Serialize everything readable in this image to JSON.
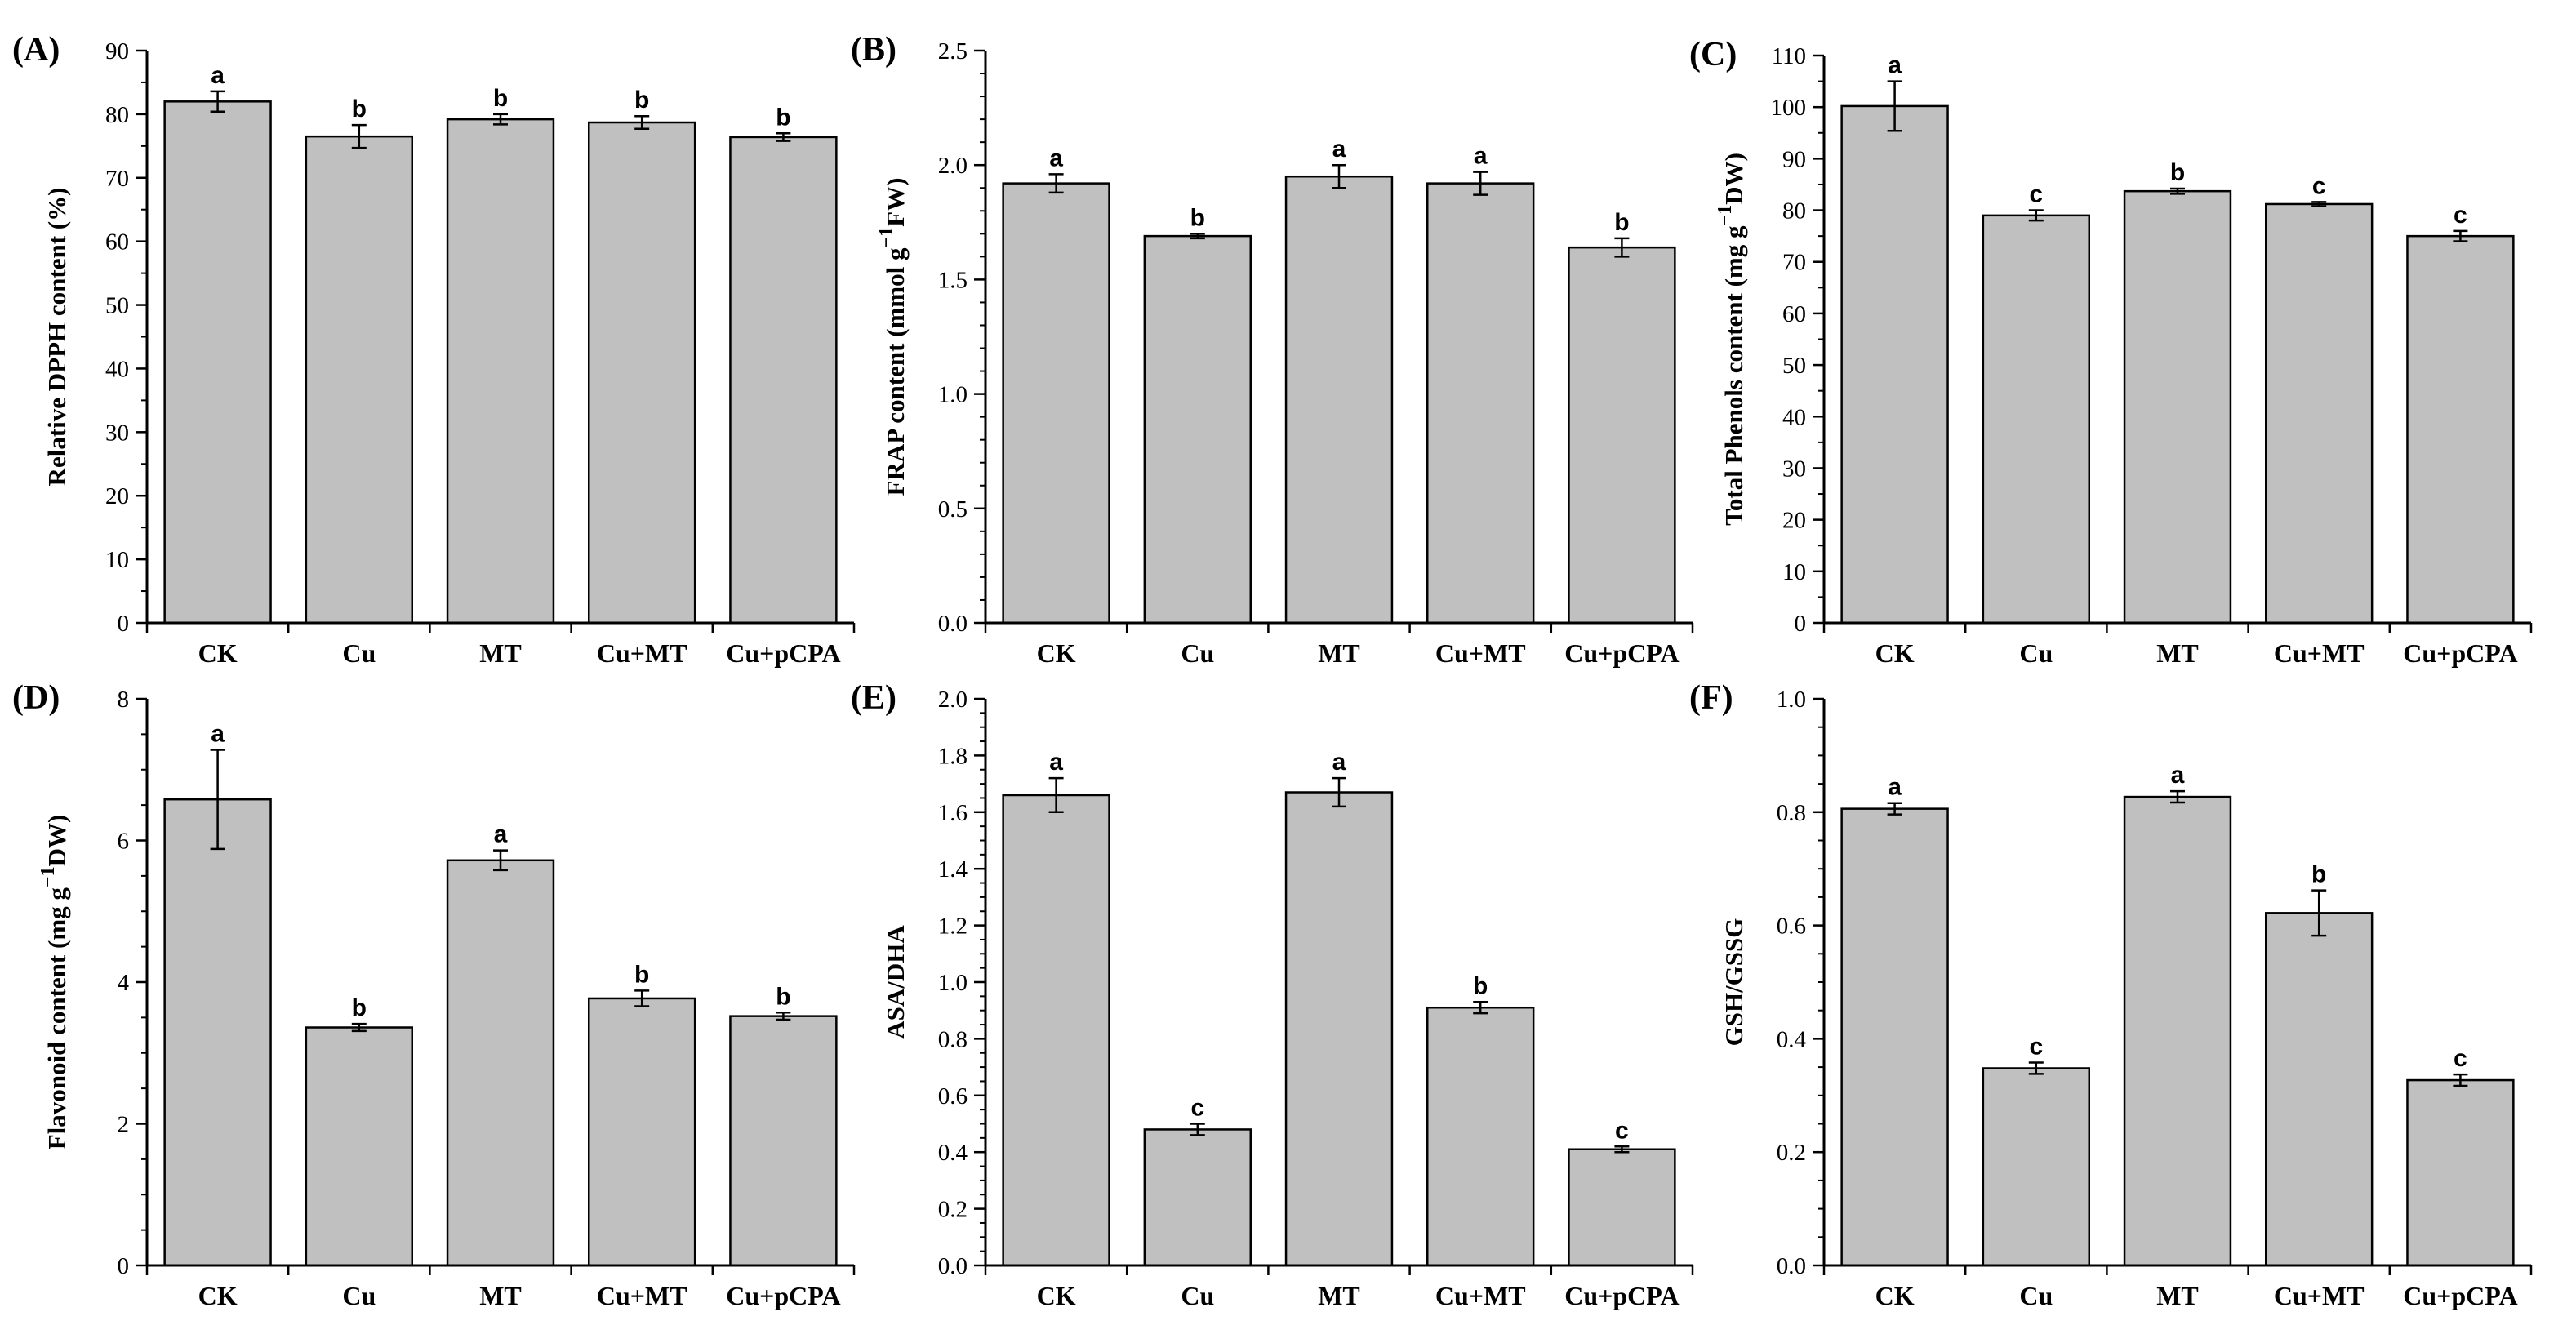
{
  "chart_data": [
    {
      "panel": "(A)",
      "type": "bar",
      "categories": [
        "CK",
        "Cu",
        "MT",
        "Cu+MT",
        "Cu+pCPA"
      ],
      "values": [
        82.0,
        76.5,
        79.2,
        78.7,
        76.4
      ],
      "errors": [
        1.6,
        1.8,
        0.8,
        1.0,
        0.6
      ],
      "significance": [
        "a",
        "b",
        "b",
        "b",
        "b"
      ],
      "ylabel": {
        "pre": "Relative DPPH content (%)",
        "sup": "",
        "post": ""
      },
      "ylim": [
        0,
        90
      ],
      "yticks": [
        0,
        10,
        20,
        30,
        40,
        50,
        60,
        70,
        80,
        90
      ],
      "ytick_labels": [
        "0",
        "10",
        "20",
        "30",
        "40",
        "50",
        "60",
        "70",
        "80",
        "90"
      ],
      "yminor_step": 5
    },
    {
      "panel": "(B)",
      "type": "bar",
      "categories": [
        "CK",
        "Cu",
        "MT",
        "Cu+MT",
        "Cu+pCPA"
      ],
      "values": [
        1.92,
        1.69,
        1.95,
        1.92,
        1.64
      ],
      "errors": [
        0.04,
        0.01,
        0.05,
        0.05,
        0.04
      ],
      "significance": [
        "a",
        "b",
        "a",
        "a",
        "b"
      ],
      "ylabel": {
        "pre": "FRAP content (mmol g",
        "sup": "−1",
        "post": "FW)"
      },
      "ylim": [
        0.0,
        2.5
      ],
      "yticks": [
        0.0,
        0.5,
        1.0,
        1.5,
        2.0,
        2.5
      ],
      "ytick_labels": [
        "0.0",
        "0.5",
        "1.0",
        "1.5",
        "2.0",
        "2.5"
      ],
      "yminor_step": 0.1
    },
    {
      "panel": "(C)",
      "type": "bar",
      "categories": [
        "CK",
        "Cu",
        "MT",
        "Cu+MT",
        "Cu+pCPA"
      ],
      "values": [
        100.2,
        79.0,
        83.7,
        81.2,
        75.0
      ],
      "errors": [
        4.8,
        1.0,
        0.5,
        0.4,
        1.0
      ],
      "significance": [
        "a",
        "c",
        "b",
        "c",
        "c"
      ],
      "ylabel": {
        "pre": "Total Phenols content (mg g",
        "sup": "−1",
        "post": "DW)"
      },
      "ylim": [
        0,
        110
      ],
      "yticks": [
        0,
        10,
        20,
        30,
        40,
        50,
        60,
        70,
        80,
        90,
        100,
        110
      ],
      "ytick_labels": [
        "0",
        "10",
        "20",
        "30",
        "40",
        "50",
        "60",
        "70",
        "80",
        "90",
        "100",
        "110"
      ],
      "yminor_step": 5
    },
    {
      "panel": "(D)",
      "type": "bar",
      "categories": [
        "CK",
        "Cu",
        "MT",
        "Cu+MT",
        "Cu+pCPA"
      ],
      "values": [
        6.58,
        3.36,
        5.72,
        3.77,
        3.52
      ],
      "errors": [
        0.7,
        0.05,
        0.14,
        0.11,
        0.05
      ],
      "significance": [
        "a",
        "b",
        "a",
        "b",
        "b"
      ],
      "ylabel": {
        "pre": "Flavonoid content (mg g",
        "sup": "−1",
        "post": "DW)"
      },
      "ylim": [
        0,
        8
      ],
      "yticks": [
        0,
        2,
        4,
        6,
        8
      ],
      "ytick_labels": [
        "0",
        "2",
        "4",
        "6",
        "8"
      ],
      "yminor_step": 0.5
    },
    {
      "panel": "(E)",
      "type": "bar",
      "categories": [
        "CK",
        "Cu",
        "MT",
        "Cu+MT",
        "Cu+pCPA"
      ],
      "values": [
        1.66,
        0.48,
        1.67,
        0.91,
        0.41
      ],
      "errors": [
        0.06,
        0.02,
        0.05,
        0.02,
        0.01
      ],
      "significance": [
        "a",
        "c",
        "a",
        "b",
        "c"
      ],
      "ylabel": {
        "pre": "ASA/DHA",
        "sup": "",
        "post": ""
      },
      "ylim": [
        0.0,
        2.0
      ],
      "yticks": [
        0.0,
        0.2,
        0.4,
        0.6,
        0.8,
        1.0,
        1.2,
        1.4,
        1.6,
        1.8,
        2.0
      ],
      "ytick_labels": [
        "0.0",
        "0.2",
        "0.4",
        "0.6",
        "0.8",
        "1.0",
        "1.2",
        "1.4",
        "1.6",
        "1.8",
        "2.0"
      ],
      "yminor_step": 0.05
    },
    {
      "panel": "(F)",
      "type": "bar",
      "categories": [
        "CK",
        "Cu",
        "MT",
        "Cu+MT",
        "Cu+pCPA"
      ],
      "values": [
        0.806,
        0.348,
        0.827,
        0.622,
        0.327
      ],
      "errors": [
        0.01,
        0.01,
        0.01,
        0.04,
        0.01
      ],
      "significance": [
        "a",
        "c",
        "a",
        "b",
        "c"
      ],
      "ylabel": {
        "pre": "GSH/GSSG",
        "sup": "",
        "post": ""
      },
      "ylim": [
        0.0,
        1.0
      ],
      "yticks": [
        0.0,
        0.2,
        0.4,
        0.6,
        0.8,
        1.0
      ],
      "ytick_labels": [
        "0.0",
        "0.2",
        "0.4",
        "0.6",
        "0.8",
        "1.0"
      ],
      "yminor_step": 0.05
    }
  ],
  "colors": {
    "bar_fill": "#c0c0c0",
    "bar_stroke": "#000000",
    "axis": "#000000"
  }
}
